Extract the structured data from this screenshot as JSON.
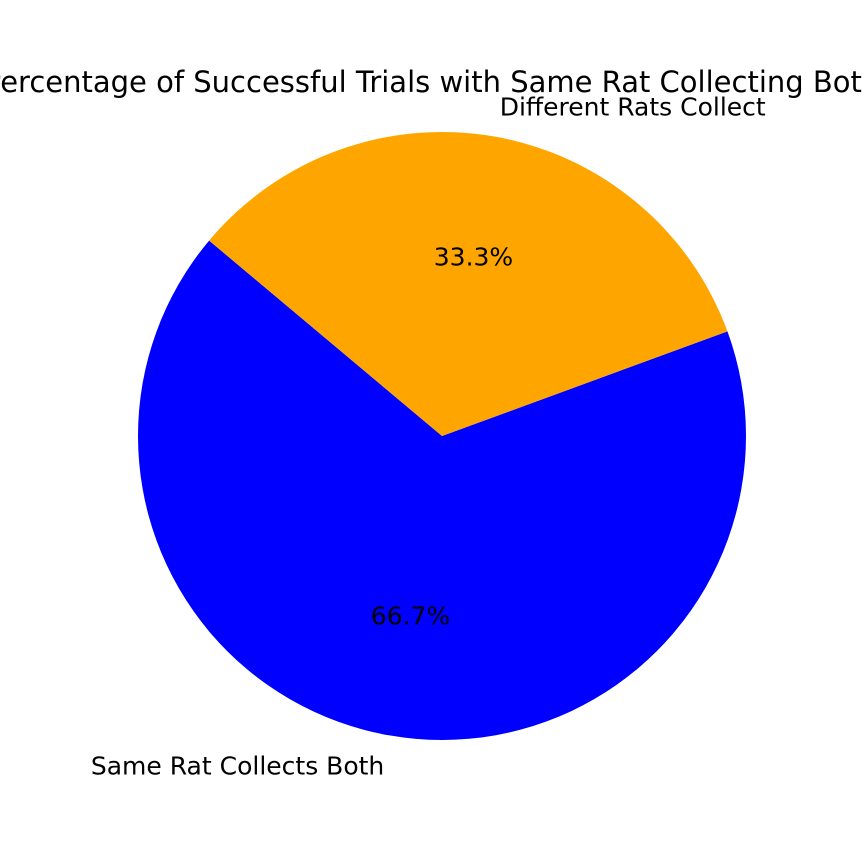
{
  "chart_data": {
    "type": "pie",
    "title": "Percentage of Successful Trials with Same Rat Collecting Both",
    "slices": [
      {
        "label": "Same Rat Collects Both",
        "value": 66.7,
        "percent_label": "66.7%",
        "color": "#0000FF"
      },
      {
        "label": "Different Rats Collect",
        "value": 33.3,
        "percent_label": "33.3%",
        "color": "#FFA500"
      }
    ],
    "start_angle_deg": 140,
    "direction": "counterclockwise",
    "legend": "none"
  }
}
